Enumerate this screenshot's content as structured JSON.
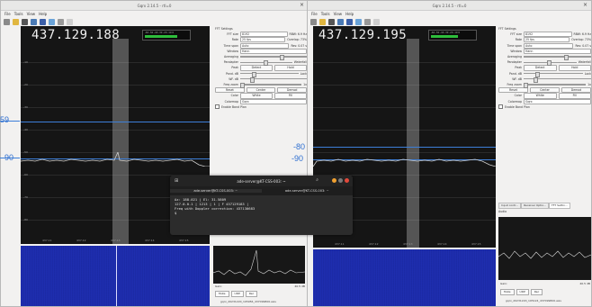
{
  "left_window": {
    "title": "Gqrx 2.14.5 - rtl=0",
    "menus": [
      "File",
      "Tools",
      "View",
      "Help"
    ],
    "frequency": "437.129.188",
    "smeter_label": "-60 -50 -40 -30 -20 -10  0",
    "y_labels": [
      "-10",
      "-20",
      "-30",
      "-40",
      "-50",
      "-60",
      "-70",
      "-80",
      "-90",
      "-100",
      "-110"
    ],
    "x_labels": [
      "437.11",
      "437.12",
      "437.13",
      "437.14",
      "437.15"
    ],
    "bottom": {
      "gain_label": "Gain:",
      "gain_value": "40.5 dB",
      "buttons": [
        "Mute",
        "UDP",
        "Rec"
      ],
      "file": "gqrx_20231220_195956_437099800.wav"
    }
  },
  "right_window": {
    "title": "Gqrx 2.14.5 - rtl=0",
    "menus": [
      "File",
      "Tools",
      "View",
      "Help"
    ],
    "frequency": "437.129.195",
    "smeter_label": "-60 -50 -40 -30 -20 -10  0",
    "x_labels": [
      "437.11",
      "437.12",
      "437.13",
      "437.14",
      "437.15"
    ],
    "tabs": [
      "Input contr...",
      "Receiver Optio...",
      "FFT Settin..."
    ],
    "audio_label": "Audio",
    "bottom": {
      "gain_label": "Gain:",
      "gain_value": "40.5 dB",
      "buttons": [
        "Mute",
        "UDP",
        "Rec"
      ],
      "file": "gqrx_20231220_195124_437099800.wav"
    }
  },
  "fft_settings": {
    "title": "FFT Settings",
    "rows": [
      {
        "label": "FFT size",
        "value": "8192",
        "extra": "RBW: 6.9 Hz"
      },
      {
        "label": "Rate",
        "value": "25 fps",
        "extra": "Overlap: 73%"
      },
      {
        "label": "Time span",
        "value": "Auto",
        "extra": "Res: 0.07 s"
      },
      {
        "label": "Window",
        "value": "Hann",
        "extra": ""
      }
    ],
    "averaging": "Averaging",
    "pandapter": "Pandapter",
    "waterfall": "Waterfall",
    "peak": "Peak",
    "detect": "Detect",
    "hold": "Hold",
    "pand_db": "Pand. dB",
    "wf_db": "WF. dB",
    "lock": "Lock",
    "freq_zoom": "Freq zoom",
    "zoom_value": "1x",
    "reset": "Reset",
    "center": "Center",
    "demod": "Demod",
    "color": "Color",
    "white": "White",
    "fill": "Fill",
    "colormap_label": "Colormap",
    "colormap": "Gqrx",
    "enable_band_plan": "Enable Band Plan"
  },
  "annotations": {
    "left_59": "59",
    "left_90": "90",
    "mid_80": "-80",
    "mid_90": "-90"
  },
  "terminal": {
    "title": "ade-server@KT-CSS-003: ~",
    "tabs": [
      "ade-server@KT-CSS-003: ~",
      "ade-server@KT-CSS-003: ~"
    ],
    "lines": [
      "Az: 188.021 | El: 31.5809",
      "127.0.0.1 | 1213 | 1 | F 437129183 |",
      "Freq with Doppler correction: 437130683",
      "$"
    ]
  },
  "colors": {
    "accent_line": "#3d7fd9",
    "waterfall": "#1d2ca6",
    "smeter": "#2ebd3c"
  }
}
